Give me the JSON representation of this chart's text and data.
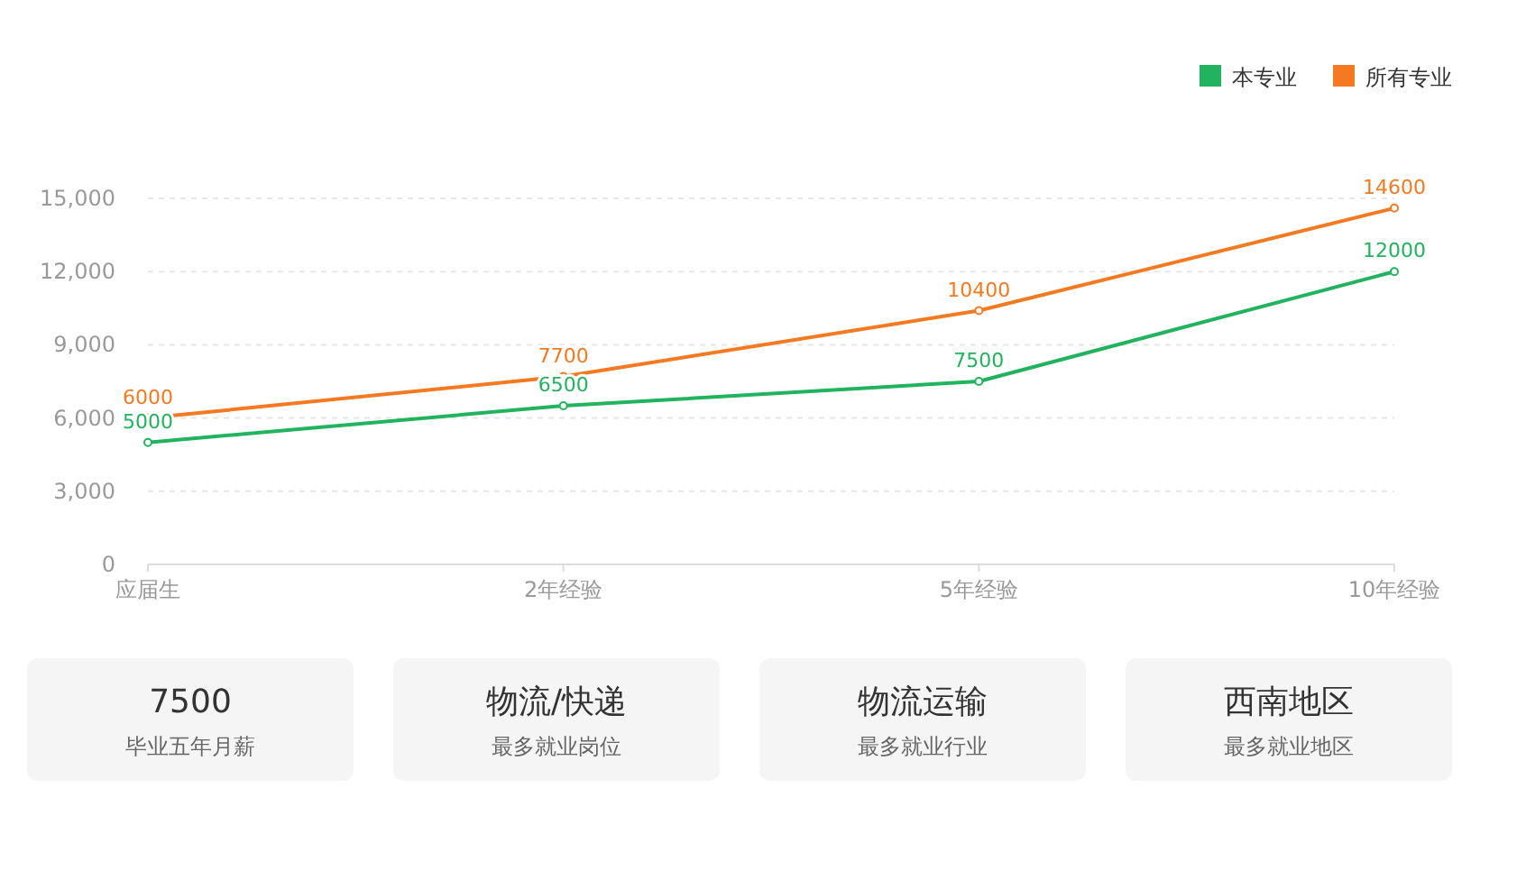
{
  "chart_data": [
    {
      "type": "line",
      "categories": [
        "应届生",
        "2年经验",
        "5年经验",
        "10年经验"
      ],
      "series": [
        {
          "name": "本专业",
          "color": "#22b35e",
          "values": [
            5000,
            6500,
            7500,
            12000
          ]
        },
        {
          "name": "所有专业",
          "color": "#f57920",
          "values": [
            6000,
            7700,
            10400,
            14600
          ]
        }
      ],
      "ylim": [
        0,
        15000
      ],
      "yticks": [
        0,
        {
          "value": 3000,
          "label": "3,000"
        },
        {
          "value": 6000,
          "label": "6,000"
        },
        {
          "value": 9000,
          "label": "9,000"
        },
        {
          "value": 12000,
          "label": "12,000"
        },
        {
          "value": 15000,
          "label": "15,000"
        }
      ],
      "grid": "y",
      "legend": "top right",
      "marker": "circle",
      "line_style": "solid",
      "data_labels": true
    },
    {
      "type": "other",
      "annotations": [
        "7500",
        "毕业五年月薪",
        "物流/快递",
        "最多就业岗位",
        "物流运输",
        "最多就业行业",
        "西南地区",
        "最多就业地区"
      ]
    }
  ]
}
